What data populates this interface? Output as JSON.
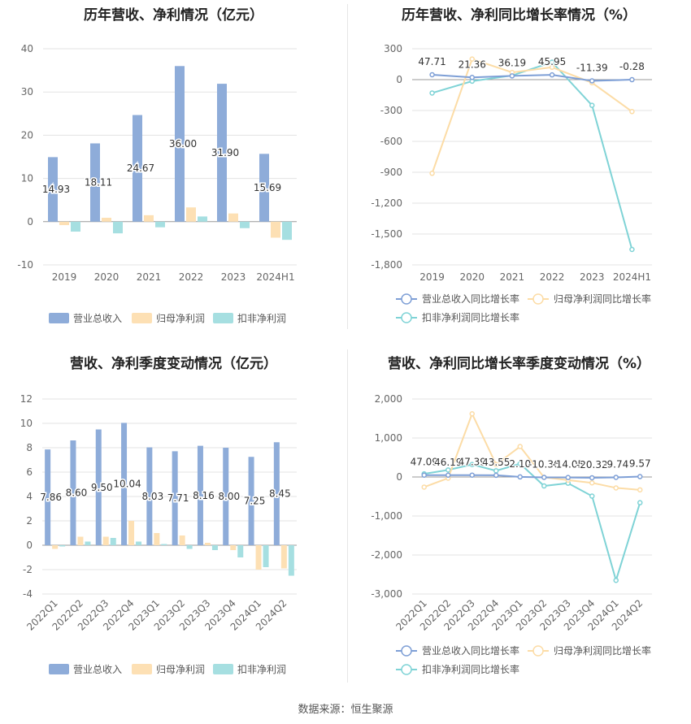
{
  "footer": "数据来源：恒生聚源",
  "colors": {
    "revenue": "#8eacd9",
    "net_profit": "#fde0b4",
    "deducted_profit": "#a6dfe1",
    "revenue_line": "#7e9fd6",
    "net_line": "#fcdca6",
    "deducted_line": "#7fd3d6"
  },
  "chart_data": [
    {
      "type": "bar",
      "title": "历年营收、净利情况（亿元）",
      "categories": [
        "2019",
        "2020",
        "2021",
        "2022",
        "2023",
        "2024H1"
      ],
      "series": [
        {
          "name": "营业总收入",
          "values": [
            14.93,
            18.11,
            24.67,
            36.0,
            31.9,
            15.69
          ]
        },
        {
          "name": "归母净利润",
          "values": [
            -0.8,
            0.9,
            1.5,
            3.3,
            1.9,
            -3.7
          ]
        },
        {
          "name": "扣非净利润",
          "values": [
            -2.3,
            -2.7,
            -1.3,
            1.2,
            -1.5,
            -4.2
          ]
        }
      ],
      "data_labels": [
        "14.93",
        "18.11",
        "24.67",
        "36.00",
        "31.90",
        "15.69"
      ],
      "ylim": [
        -10,
        40
      ],
      "yticks": [
        -10,
        0,
        10,
        20,
        30,
        40
      ],
      "legend_position": "bottom",
      "grid": true
    },
    {
      "type": "line",
      "title": "历年营收、净利同比增长率情况（%）",
      "categories": [
        "2019",
        "2020",
        "2021",
        "2022",
        "2023",
        "2024H1"
      ],
      "series": [
        {
          "name": "营业总收入同比增长率",
          "values": [
            47.71,
            21.36,
            36.19,
            45.95,
            -11.39,
            -0.28
          ]
        },
        {
          "name": "归母净利润同比增长率",
          "values": [
            -910,
            200,
            70,
            120,
            -30,
            -310
          ]
        },
        {
          "name": "扣非净利润同比增长率",
          "values": [
            -130,
            -15,
            40,
            170,
            -250,
            -1650
          ]
        }
      ],
      "data_labels": [
        "47.71",
        "21.36",
        "36.19",
        "45.95",
        "-11.39",
        "-0.28"
      ],
      "ylim": [
        -1800,
        300
      ],
      "yticks": [
        300,
        0,
        -300,
        -600,
        -900,
        -1200,
        -1500,
        -1800
      ],
      "ytick_labels": [
        "300",
        "0",
        "-300",
        "-600",
        "-900",
        "-1,200",
        "-1,500",
        "-1,800"
      ],
      "legend_position": "bottom",
      "grid": true
    },
    {
      "type": "bar",
      "title": "营收、净利季度变动情况（亿元）",
      "categories": [
        "2022Q1",
        "2022Q2",
        "2022Q3",
        "2022Q4",
        "2023Q1",
        "2023Q2",
        "2023Q3",
        "2023Q4",
        "2024Q1",
        "2024Q2"
      ],
      "series": [
        {
          "name": "营业总收入",
          "values": [
            7.86,
            8.6,
            9.5,
            10.04,
            8.03,
            7.71,
            8.16,
            8.0,
            7.25,
            8.45
          ]
        },
        {
          "name": "归母净利润",
          "values": [
            -0.3,
            0.7,
            0.7,
            2.0,
            1.0,
            0.8,
            0.2,
            -0.4,
            -2.0,
            -1.9
          ]
        },
        {
          "name": "扣非净利润",
          "values": [
            -0.1,
            0.3,
            0.6,
            0.3,
            0.1,
            -0.3,
            -0.4,
            -1.0,
            -1.8,
            -2.5
          ]
        }
      ],
      "data_labels": [
        "7.86",
        "8.60",
        "9.50",
        "10.04",
        "8.03",
        "7.71",
        "8.16",
        "8.00",
        "7.25",
        "8.45"
      ],
      "ylim": [
        -4,
        12
      ],
      "yticks": [
        -4,
        -2,
        0,
        2,
        4,
        6,
        8,
        10,
        12
      ],
      "legend_position": "bottom",
      "grid": true
    },
    {
      "type": "line",
      "title": "营收、净利同比增长率季度变动情况（%）",
      "categories": [
        "2022Q1",
        "2022Q2",
        "2022Q3",
        "2022Q4",
        "2023Q1",
        "2023Q2",
        "2023Q3",
        "2023Q4",
        "2024Q1",
        "2024Q2"
      ],
      "series": [
        {
          "name": "营业总收入同比增长率",
          "values": [
            47.09,
            46.19,
            47.39,
            43.55,
            2.1,
            -10.36,
            -14.05,
            -20.32,
            -9.74,
            9.57
          ]
        },
        {
          "name": "归母净利润同比增长率",
          "values": [
            -260,
            -30,
            1620,
            320,
            780,
            -10,
            -80,
            -150,
            -280,
            -330
          ]
        },
        {
          "name": "扣非净利润同比增长率",
          "values": [
            80,
            180,
            320,
            160,
            340,
            -230,
            -160,
            -490,
            -2650,
            -660
          ]
        }
      ],
      "data_labels": [
        "47.09",
        "46.19",
        "47.39",
        "43.55",
        "2.10",
        "-10.36",
        "-14.05",
        "-20.32",
        "-9.74",
        "9.57"
      ],
      "ylim": [
        -3000,
        2000
      ],
      "yticks": [
        2000,
        1000,
        0,
        -1000,
        -2000,
        -3000
      ],
      "ytick_labels": [
        "2,000",
        "1,000",
        "0",
        "-1,000",
        "-2,000",
        "-3,000"
      ],
      "legend_position": "bottom",
      "grid": true
    }
  ]
}
